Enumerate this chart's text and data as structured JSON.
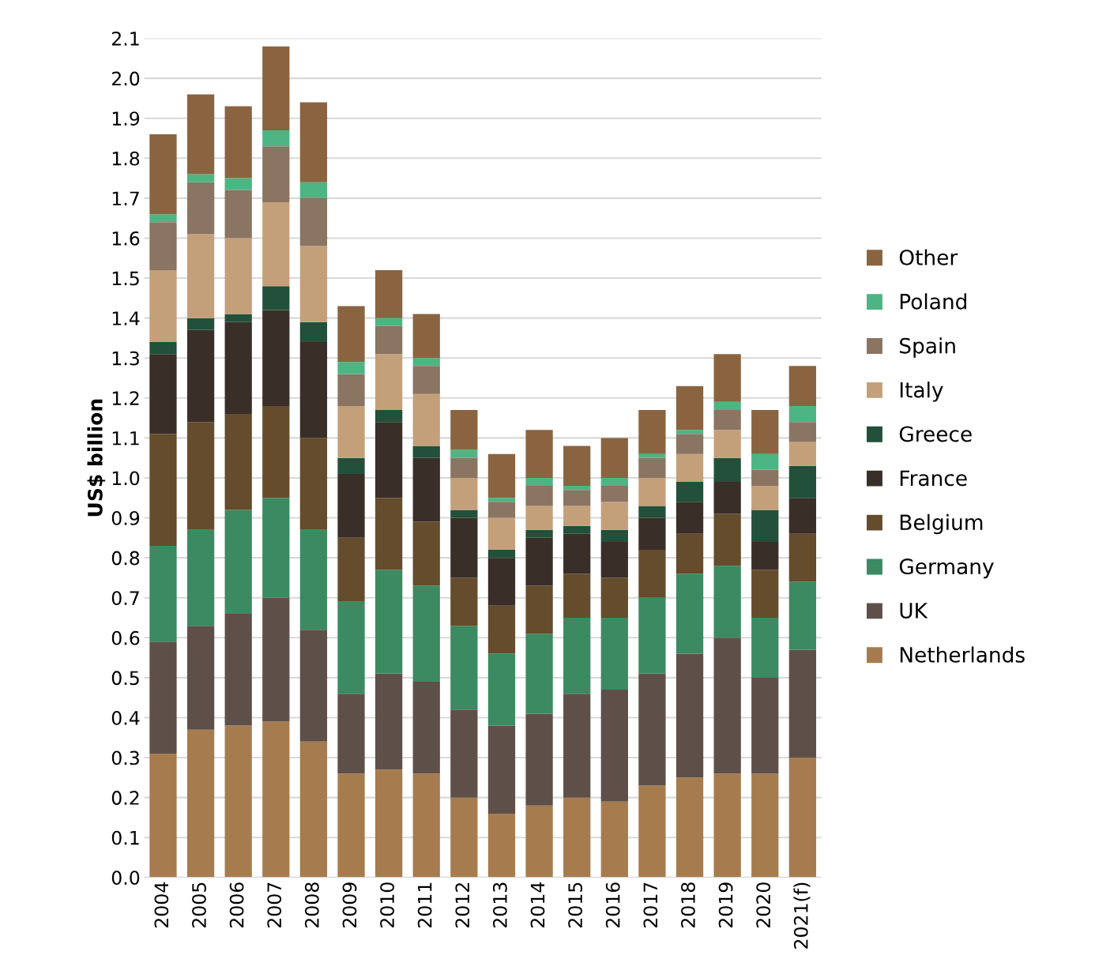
{
  "chart_data": {
    "type": "bar",
    "stacked": true,
    "ylabel": "US$ billion",
    "categories": [
      "2004",
      "2005",
      "2006",
      "2007",
      "2008",
      "2009",
      "2010",
      "2011",
      "2012",
      "2013",
      "2014",
      "2015",
      "2016",
      "2017",
      "2018",
      "2019",
      "2020",
      "2021(f)"
    ],
    "ylim": [
      0,
      2.1
    ],
    "yticks": [
      {
        "value": 0,
        "label": "0.0"
      },
      {
        "value": 0.1,
        "label": "0.1"
      },
      {
        "value": 0.2,
        "label": "0.2"
      },
      {
        "value": 0.3,
        "label": "0.3"
      },
      {
        "value": 0.4,
        "label": "0.4"
      },
      {
        "value": 0.5,
        "label": "0.5"
      },
      {
        "value": 0.6,
        "label": "0.6"
      },
      {
        "value": 0.7,
        "label": "0.7"
      },
      {
        "value": 0.8,
        "label": "0.8"
      },
      {
        "value": 0.9,
        "label": "0.9"
      },
      {
        "value": 1.0,
        "label": "1.0"
      },
      {
        "value": 1.1,
        "label": "1.1"
      },
      {
        "value": 1.2,
        "label": "1.2"
      },
      {
        "value": 1.3,
        "label": "1.3"
      },
      {
        "value": 1.4,
        "label": "1.4"
      },
      {
        "value": 1.5,
        "label": "1.5"
      },
      {
        "value": 1.6,
        "label": "1.6"
      },
      {
        "value": 1.7,
        "label": "1.7"
      },
      {
        "value": 1.8,
        "label": "1.8"
      },
      {
        "value": 1.9,
        "label": "1.9"
      },
      {
        "value": 2.0,
        "label": "2.0"
      },
      {
        "value": 2.1,
        "label": "2.1"
      }
    ],
    "grid": "y",
    "legend": "right",
    "series": [
      {
        "name": "Netherlands",
        "color": "#a67c4e",
        "values": [
          0.31,
          0.37,
          0.38,
          0.39,
          0.34,
          0.26,
          0.27,
          0.26,
          0.2,
          0.16,
          0.18,
          0.2,
          0.19,
          0.23,
          0.25,
          0.26,
          0.26,
          0.3
        ]
      },
      {
        "name": "UK",
        "color": "#5e5048",
        "values": [
          0.28,
          0.26,
          0.28,
          0.31,
          0.28,
          0.2,
          0.24,
          0.23,
          0.22,
          0.22,
          0.23,
          0.26,
          0.28,
          0.28,
          0.31,
          0.34,
          0.24,
          0.27
        ]
      },
      {
        "name": "Germany",
        "color": "#3b8a62",
        "values": [
          0.24,
          0.24,
          0.26,
          0.25,
          0.25,
          0.23,
          0.26,
          0.24,
          0.21,
          0.18,
          0.2,
          0.19,
          0.18,
          0.19,
          0.2,
          0.18,
          0.15,
          0.17
        ]
      },
      {
        "name": "Belgium",
        "color": "#654c2c",
        "values": [
          0.28,
          0.27,
          0.24,
          0.23,
          0.23,
          0.16,
          0.18,
          0.16,
          0.12,
          0.12,
          0.12,
          0.11,
          0.1,
          0.12,
          0.1,
          0.13,
          0.12,
          0.12
        ]
      },
      {
        "name": "France",
        "color": "#3a2e28",
        "values": [
          0.2,
          0.23,
          0.23,
          0.24,
          0.24,
          0.16,
          0.19,
          0.16,
          0.15,
          0.12,
          0.12,
          0.1,
          0.09,
          0.08,
          0.08,
          0.08,
          0.07,
          0.09
        ]
      },
      {
        "name": "Greece",
        "color": "#22503a",
        "values": [
          0.03,
          0.03,
          0.02,
          0.06,
          0.05,
          0.04,
          0.03,
          0.03,
          0.02,
          0.02,
          0.02,
          0.02,
          0.03,
          0.03,
          0.05,
          0.06,
          0.08,
          0.08
        ]
      },
      {
        "name": "Italy",
        "color": "#c4a07a",
        "values": [
          0.18,
          0.21,
          0.19,
          0.21,
          0.19,
          0.13,
          0.14,
          0.13,
          0.08,
          0.08,
          0.06,
          0.05,
          0.07,
          0.07,
          0.07,
          0.07,
          0.06,
          0.06
        ]
      },
      {
        "name": "Spain",
        "color": "#8a7462",
        "values": [
          0.12,
          0.13,
          0.12,
          0.14,
          0.12,
          0.08,
          0.07,
          0.07,
          0.05,
          0.04,
          0.05,
          0.04,
          0.04,
          0.05,
          0.05,
          0.05,
          0.04,
          0.05
        ]
      },
      {
        "name": "Poland",
        "color": "#4db584",
        "values": [
          0.02,
          0.02,
          0.03,
          0.04,
          0.04,
          0.03,
          0.02,
          0.02,
          0.02,
          0.01,
          0.02,
          0.01,
          0.02,
          0.01,
          0.01,
          0.02,
          0.04,
          0.04
        ]
      },
      {
        "name": "Other",
        "color": "#8a6440",
        "values": [
          0.2,
          0.2,
          0.18,
          0.21,
          0.2,
          0.14,
          0.12,
          0.11,
          0.1,
          0.11,
          0.12,
          0.1,
          0.1,
          0.11,
          0.11,
          0.12,
          0.11,
          0.1
        ]
      }
    ]
  }
}
